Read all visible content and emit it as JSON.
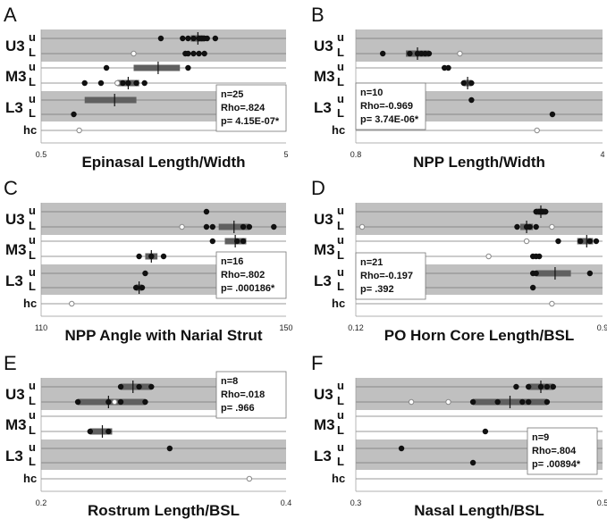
{
  "colors": {
    "band": "#c0c0c0",
    "bar": "#606060",
    "point": "#111111",
    "open_point": "#888888",
    "grid": "#777777"
  },
  "row_labels": {
    "U3": "U3",
    "M3": "M3",
    "L3": "L3",
    "hc": "hc",
    "u": "u",
    "L": "L"
  },
  "chart_data": [
    {
      "type": "scatter",
      "letter": "A",
      "xlabel": "Epinasal Length/Width",
      "xlim": [
        0.5,
        5
      ],
      "ticks": [
        "0.5",
        "5"
      ],
      "stats": {
        "n": "n=25",
        "rho": "Rho=.824",
        "p": "p= 4.15E-07*"
      },
      "points": {
        "U3u": [
          2.7,
          3.1,
          3.2,
          3.3,
          3.4,
          3.45,
          3.5,
          3.55,
          3.7
        ],
        "U3L": [
          3.15,
          3.2,
          3.3,
          3.4,
          3.5
        ],
        "U3L_open": [
          2.2
        ],
        "M3u": [
          1.7,
          3.2
        ],
        "M3L": [
          1.3,
          1.6,
          2.0,
          2.1,
          2.25,
          2.4
        ],
        "M3L_open": [
          1.9
        ],
        "L3u": [],
        "L3L": [
          1.1
        ],
        "hc_open": [
          1.2
        ]
      },
      "bars": {
        "U3u": [
          3.25,
          3.5,
          3.38
        ],
        "M3u": [
          2.2,
          3.05,
          2.65
        ],
        "M3L": [
          1.9,
          2.3,
          2.1
        ],
        "L3u": [
          1.3,
          2.25,
          1.85
        ]
      }
    },
    {
      "type": "scatter",
      "letter": "B",
      "xlabel": "NPP Length/Width",
      "xlim": [
        0.8,
        4
      ],
      "ticks": [
        "0.8",
        "4"
      ],
      "stats": {
        "n": "n=10",
        "rho": "Rho=-0.969",
        "p": "p= 3.74E-06*"
      },
      "points": {
        "U3u": [],
        "U3L": [
          1.15,
          1.5,
          1.6,
          1.65,
          1.7,
          1.75
        ],
        "U3L_open": [
          2.15
        ],
        "M3u": [
          1.95,
          2.0
        ],
        "M3L": [
          2.2,
          2.3
        ],
        "L3u": [
          2.3
        ],
        "L3L": [
          3.35
        ],
        "hc_open": [
          3.15
        ]
      },
      "bars": {
        "U3L": [
          1.45,
          1.75,
          1.6
        ],
        "M3L": [
          2.2,
          2.3,
          2.25
        ]
      }
    },
    {
      "type": "scatter",
      "letter": "C",
      "xlabel": "NPP Angle with Narial Strut",
      "xlim": [
        110,
        150
      ],
      "ticks": [
        "110",
        "150"
      ],
      "stats": {
        "n": "n=16",
        "rho": "Rho=.802",
        "p": "p= .000186*"
      },
      "points": {
        "U3u": [
          137
        ],
        "U3L": [
          137,
          138,
          143,
          144,
          148
        ],
        "U3L_open": [
          133
        ],
        "M3u": [
          138,
          142,
          143
        ],
        "M3L": [
          126,
          128,
          130
        ],
        "L3u": [
          127
        ],
        "L3L": [
          125.5,
          126.5
        ],
        "hc_open": [
          115
        ]
      },
      "bars": {
        "U3L": [
          139,
          144,
          141.5
        ],
        "M3u": [
          140,
          143.5,
          141.7
        ],
        "M3L": [
          127,
          129,
          128
        ],
        "L3L": [
          125.5,
          126.5,
          126
        ]
      }
    },
    {
      "type": "scatter",
      "letter": "D",
      "xlabel": "PO Horn Core Length/BSL",
      "xlim": [
        0.12,
        0.9
      ],
      "ticks": [
        "0.12",
        "0.9"
      ],
      "stats": {
        "n": "n=21",
        "rho": "Rho=-0.197",
        "p": "p= .392"
      },
      "points": {
        "U3u": [
          0.69,
          0.7,
          0.71,
          0.72
        ],
        "U3L": [
          0.63,
          0.66,
          0.67,
          0.69
        ],
        "U3L_open": [
          0.14,
          0.74
        ],
        "M3u": [
          0.76,
          0.83,
          0.86,
          0.88
        ],
        "M3u_open": [
          0.66
        ],
        "M3L": [
          0.68,
          0.69,
          0.7
        ],
        "M3L_open": [
          0.54
        ],
        "L3u": [
          0.68,
          0.69,
          0.86
        ],
        "L3L": [
          0.68
        ],
        "hc_open": [
          0.74
        ]
      },
      "bars": {
        "U3u": [
          0.69,
          0.72,
          0.705
        ],
        "U3L": [
          0.64,
          0.68,
          0.66
        ],
        "M3u": [
          0.82,
          0.87,
          0.85
        ],
        "L3u": [
          0.69,
          0.8,
          0.75
        ]
      }
    },
    {
      "type": "scatter",
      "letter": "E",
      "xlabel": "Rostrum Length/BSL",
      "xlim": [
        0.2,
        0.4
      ],
      "ticks": [
        "0.2",
        "0.4"
      ],
      "stats": {
        "n": "n=8",
        "rho": "Rho=.018",
        "p": "p= .966"
      },
      "points": {
        "U3u": [
          0.265,
          0.28,
          0.29
        ],
        "U3L": [
          0.23,
          0.255,
          0.265,
          0.285
        ],
        "U3L_open": [
          0.26
        ],
        "M3u": [],
        "M3L": [
          0.24,
          0.255
        ],
        "L3u": [
          0.305
        ],
        "L3L": [],
        "hc_open": [
          0.37
        ]
      },
      "bars": {
        "U3u": [
          0.265,
          0.29,
          0.275
        ],
        "U3L": [
          0.23,
          0.285,
          0.255
        ],
        "M3L": [
          0.24,
          0.258,
          0.25
        ]
      }
    },
    {
      "type": "scatter",
      "letter": "F",
      "xlabel": "Nasal Length/BSL",
      "xlim": [
        0.3,
        0.5
      ],
      "ticks": [
        "0.3",
        "0.5"
      ],
      "stats": {
        "n": "n=9",
        "rho": "Rho=.804",
        "p": "p= .00894*"
      },
      "points": {
        "U3u": [
          0.43,
          0.44,
          0.45,
          0.455,
          0.46
        ],
        "U3L": [
          0.395,
          0.415,
          0.435,
          0.44,
          0.455
        ],
        "U3L_open": [
          0.345,
          0.375
        ],
        "M3u": [],
        "M3L": [
          0.405
        ],
        "L3u": [
          0.337
        ],
        "L3L": [
          0.395
        ],
        "hc_open": []
      },
      "bars": {
        "U3u": [
          0.44,
          0.46,
          0.45
        ],
        "U3L": [
          0.395,
          0.455,
          0.425
        ]
      }
    }
  ]
}
